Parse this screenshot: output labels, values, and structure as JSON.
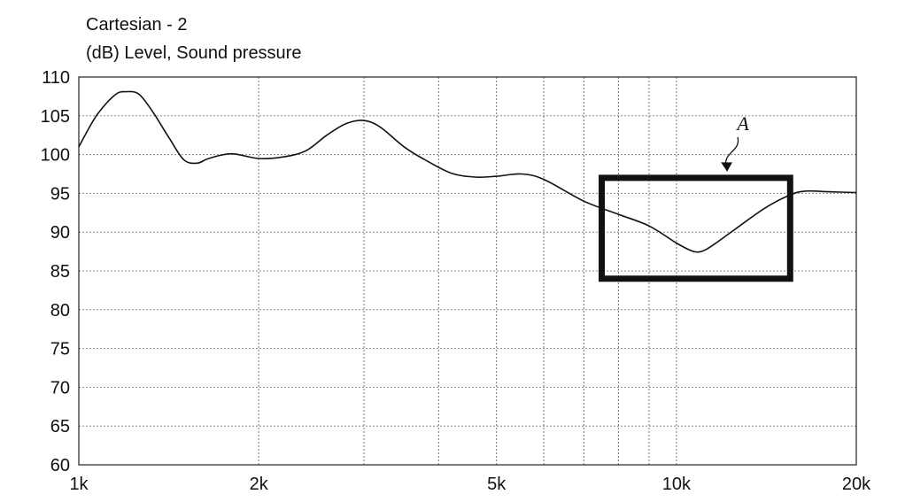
{
  "chart_data": {
    "type": "line",
    "title": "Cartesian - 2",
    "ylabel": "(dB) Level, Sound pressure",
    "xlabel": "",
    "x_scale": "log",
    "xlim": [
      1000,
      20000
    ],
    "ylim": [
      60,
      110
    ],
    "y_ticks": [
      110,
      105,
      100,
      95,
      90,
      85,
      80,
      75,
      70,
      65,
      60
    ],
    "x_ticks": [
      {
        "value": 1000,
        "label": "1k"
      },
      {
        "value": 2000,
        "label": "2k"
      },
      {
        "value": 5000,
        "label": "5k"
      },
      {
        "value": 10000,
        "label": "10k"
      },
      {
        "value": 20000,
        "label": "20k"
      }
    ],
    "x_gridlines": [
      1000,
      2000,
      3000,
      4000,
      5000,
      6000,
      7000,
      8000,
      9000,
      10000,
      20000
    ],
    "grid": true,
    "series": [
      {
        "x": [
          1000,
          1070,
          1150,
          1200,
          1260,
          1330,
          1420,
          1500,
          1580,
          1650,
          1800,
          2000,
          2200,
          2400,
          2600,
          2800,
          3000,
          3200,
          3500,
          3800,
          4200,
          4600,
          5000,
          5500,
          6000,
          7000,
          8000,
          9000,
          10000,
          10600,
          11000,
          11500,
          12500,
          14000,
          15500,
          16500,
          18000,
          20000
        ],
        "y": [
          101.0,
          105.0,
          107.7,
          108.1,
          107.8,
          105.5,
          102.0,
          99.3,
          98.9,
          99.5,
          100.1,
          99.5,
          99.7,
          100.5,
          102.5,
          104.0,
          104.4,
          103.5,
          101.0,
          99.3,
          97.6,
          97.1,
          97.2,
          97.5,
          96.8,
          94.0,
          92.3,
          90.8,
          88.6,
          87.6,
          87.5,
          88.3,
          90.3,
          93.0,
          94.8,
          95.3,
          95.2,
          95.1
        ]
      }
    ],
    "annotations": [
      {
        "label": "A",
        "type": "rectangle",
        "x_range": [
          7500,
          15500
        ],
        "y_range": [
          84,
          97
        ]
      }
    ]
  }
}
